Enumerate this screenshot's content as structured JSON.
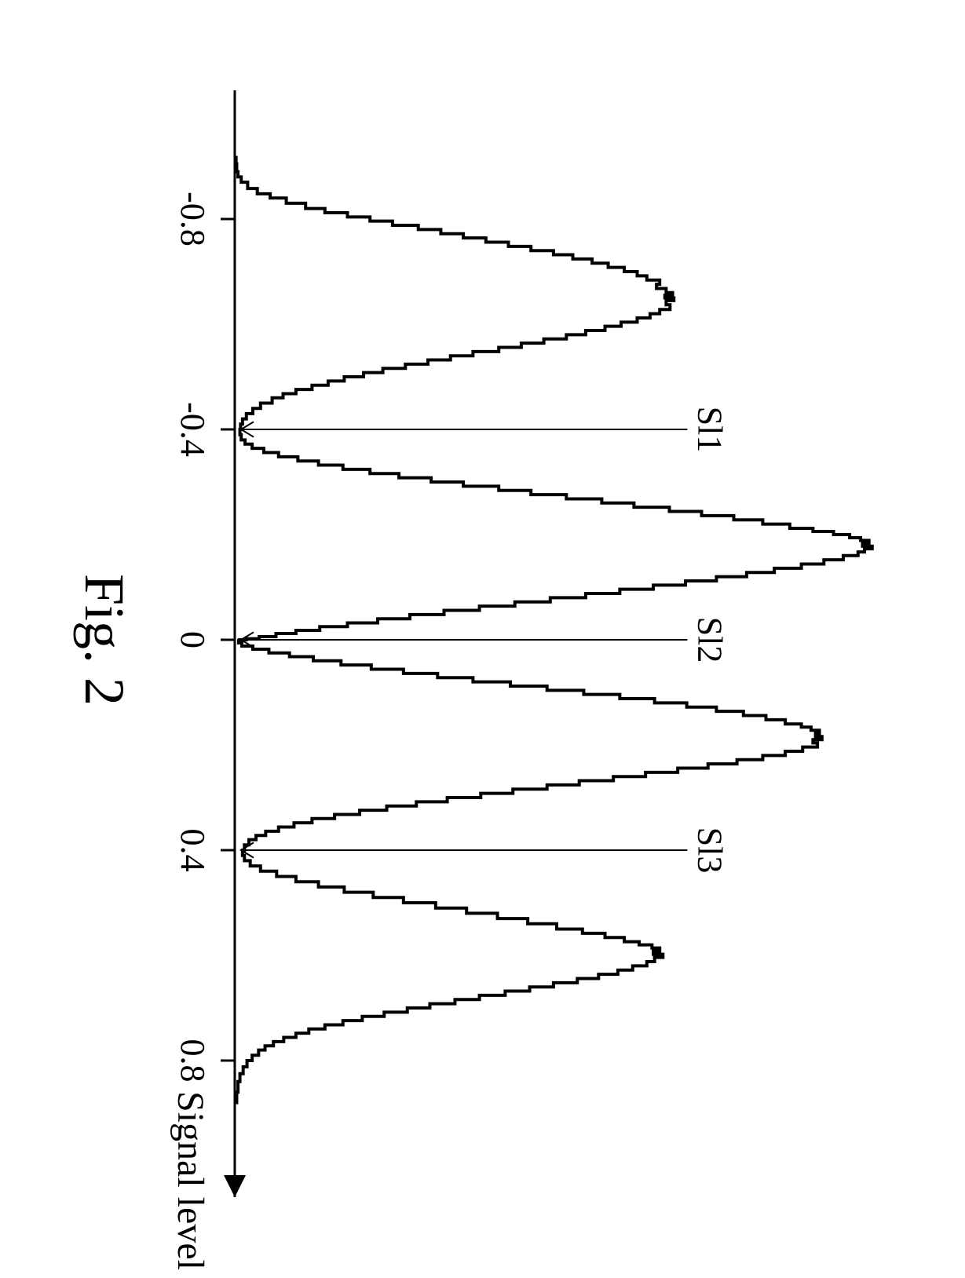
{
  "figure": {
    "caption": "Fig. 2",
    "caption_fontsize": 72,
    "caption_color": "#000000",
    "xaxis_label": "Signal level",
    "xaxis_label_fontsize": 48,
    "rotation_deg": 90,
    "plot": {
      "xlim": [
        -1.0,
        1.0
      ],
      "x_ticks": [
        -0.8,
        -0.4,
        0,
        0.4,
        0.8
      ],
      "x_tick_labels": [
        "-0.8",
        "-0.4",
        "0",
        "0.4",
        "0.8"
      ],
      "tick_fontsize": 44,
      "axis_color": "#000000",
      "axis_width": 3,
      "curve_color": "#000000",
      "curve_width": 4,
      "background": "#ffffff",
      "annotations": [
        {
          "label": "Sl1",
          "x": -0.4
        },
        {
          "label": "Sl2",
          "x": 0.0
        },
        {
          "label": "Sl3",
          "x": 0.4
        }
      ],
      "annotation_fontsize": 44,
      "data_points": [
        [
          -0.92,
          0.002
        ],
        [
          -0.905,
          0.003
        ],
        [
          -0.89,
          0.005
        ],
        [
          -0.88,
          0.01
        ],
        [
          -0.87,
          0.02
        ],
        [
          -0.858,
          0.035
        ],
        [
          -0.848,
          0.055
        ],
        [
          -0.84,
          0.08
        ],
        [
          -0.83,
          0.11
        ],
        [
          -0.82,
          0.14
        ],
        [
          -0.812,
          0.175
        ],
        [
          -0.804,
          0.21
        ],
        [
          -0.796,
          0.245
        ],
        [
          -0.788,
          0.285
        ],
        [
          -0.78,
          0.32
        ],
        [
          -0.772,
          0.355
        ],
        [
          -0.764,
          0.39
        ],
        [
          -0.756,
          0.425
        ],
        [
          -0.748,
          0.46
        ],
        [
          -0.74,
          0.495
        ],
        [
          -0.732,
          0.525
        ],
        [
          -0.724,
          0.555
        ],
        [
          -0.716,
          0.58
        ],
        [
          -0.708,
          0.605
        ],
        [
          -0.7,
          0.625
        ],
        [
          -0.692,
          0.64
        ],
        [
          -0.684,
          0.66
        ],
        [
          -0.676,
          0.655
        ],
        [
          -0.668,
          0.67
        ],
        [
          -0.66,
          0.68
        ],
        [
          -0.655,
          0.668
        ],
        [
          -0.65,
          0.682
        ],
        [
          -0.645,
          0.67
        ],
        [
          -0.637,
          0.676
        ],
        [
          -0.628,
          0.66
        ],
        [
          -0.62,
          0.645
        ],
        [
          -0.612,
          0.625
        ],
        [
          -0.604,
          0.6
        ],
        [
          -0.596,
          0.575
        ],
        [
          -0.588,
          0.545
        ],
        [
          -0.58,
          0.515
        ],
        [
          -0.572,
          0.48
        ],
        [
          -0.564,
          0.445
        ],
        [
          -0.556,
          0.41
        ],
        [
          -0.548,
          0.37
        ],
        [
          -0.54,
          0.335
        ],
        [
          -0.532,
          0.3
        ],
        [
          -0.524,
          0.265
        ],
        [
          -0.516,
          0.23
        ],
        [
          -0.508,
          0.2
        ],
        [
          -0.5,
          0.17
        ],
        [
          -0.492,
          0.145
        ],
        [
          -0.484,
          0.12
        ],
        [
          -0.476,
          0.095
        ],
        [
          -0.468,
          0.075
        ],
        [
          -0.46,
          0.058
        ],
        [
          -0.45,
          0.04
        ],
        [
          -0.44,
          0.028
        ],
        [
          -0.43,
          0.018
        ],
        [
          -0.42,
          0.012
        ],
        [
          -0.41,
          0.009
        ],
        [
          -0.4,
          0.008
        ],
        [
          -0.39,
          0.01
        ],
        [
          -0.38,
          0.016
        ],
        [
          -0.372,
          0.027
        ],
        [
          -0.364,
          0.045
        ],
        [
          -0.356,
          0.068
        ],
        [
          -0.348,
          0.098
        ],
        [
          -0.34,
          0.13
        ],
        [
          -0.332,
          0.168
        ],
        [
          -0.324,
          0.21
        ],
        [
          -0.316,
          0.255
        ],
        [
          -0.308,
          0.305
        ],
        [
          -0.3,
          0.355
        ],
        [
          -0.292,
          0.41
        ],
        [
          -0.284,
          0.46
        ],
        [
          -0.276,
          0.515
        ],
        [
          -0.268,
          0.57
        ],
        [
          -0.26,
          0.62
        ],
        [
          -0.252,
          0.675
        ],
        [
          -0.244,
          0.725
        ],
        [
          -0.236,
          0.775
        ],
        [
          -0.228,
          0.82
        ],
        [
          -0.22,
          0.862
        ],
        [
          -0.212,
          0.898
        ],
        [
          -0.206,
          0.93
        ],
        [
          -0.2,
          0.955
        ],
        [
          -0.194,
          0.972
        ],
        [
          -0.189,
          0.985
        ],
        [
          -0.184,
          0.975
        ],
        [
          -0.178,
          0.99
        ],
        [
          -0.173,
          0.978
        ],
        [
          -0.167,
          0.968
        ],
        [
          -0.16,
          0.945
        ],
        [
          -0.152,
          0.915
        ],
        [
          -0.144,
          0.88
        ],
        [
          -0.136,
          0.838
        ],
        [
          -0.128,
          0.795
        ],
        [
          -0.12,
          0.748
        ],
        [
          -0.112,
          0.7
        ],
        [
          -0.104,
          0.65
        ],
        [
          -0.096,
          0.598
        ],
        [
          -0.088,
          0.545
        ],
        [
          -0.08,
          0.49
        ],
        [
          -0.072,
          0.435
        ],
        [
          -0.064,
          0.38
        ],
        [
          -0.056,
          0.325
        ],
        [
          -0.048,
          0.272
        ],
        [
          -0.04,
          0.222
        ],
        [
          -0.032,
          0.175
        ],
        [
          -0.025,
          0.132
        ],
        [
          -0.018,
          0.095
        ],
        [
          -0.012,
          0.064
        ],
        [
          -0.006,
          0.038
        ],
        [
          -0.002,
          0.018
        ],
        [
          0.0,
          0.007
        ],
        [
          0.002,
          0.006
        ],
        [
          0.006,
          0.011
        ],
        [
          0.012,
          0.028
        ],
        [
          0.018,
          0.053
        ],
        [
          0.025,
          0.085
        ],
        [
          0.032,
          0.122
        ],
        [
          0.04,
          0.165
        ],
        [
          0.048,
          0.212
        ],
        [
          0.056,
          0.262
        ],
        [
          0.064,
          0.315
        ],
        [
          0.072,
          0.37
        ],
        [
          0.08,
          0.428
        ],
        [
          0.088,
          0.485
        ],
        [
          0.096,
          0.542
        ],
        [
          0.104,
          0.598
        ],
        [
          0.112,
          0.652
        ],
        [
          0.12,
          0.702
        ],
        [
          0.128,
          0.748
        ],
        [
          0.136,
          0.79
        ],
        [
          0.144,
          0.825
        ],
        [
          0.152,
          0.855
        ],
        [
          0.16,
          0.88
        ],
        [
          0.166,
          0.895
        ],
        [
          0.172,
          0.908
        ],
        [
          0.178,
          0.902
        ],
        [
          0.184,
          0.912
        ],
        [
          0.19,
          0.898
        ],
        [
          0.196,
          0.905
        ],
        [
          0.204,
          0.882
        ],
        [
          0.212,
          0.855
        ],
        [
          0.22,
          0.82
        ],
        [
          0.228,
          0.78
        ],
        [
          0.236,
          0.735
        ],
        [
          0.244,
          0.688
        ],
        [
          0.252,
          0.638
        ],
        [
          0.26,
          0.588
        ],
        [
          0.268,
          0.535
        ],
        [
          0.276,
          0.485
        ],
        [
          0.284,
          0.432
        ],
        [
          0.292,
          0.382
        ],
        [
          0.3,
          0.33
        ],
        [
          0.308,
          0.282
        ],
        [
          0.316,
          0.236
        ],
        [
          0.324,
          0.194
        ],
        [
          0.332,
          0.155
        ],
        [
          0.34,
          0.12
        ],
        [
          0.348,
          0.092
        ],
        [
          0.356,
          0.068
        ],
        [
          0.364,
          0.048
        ],
        [
          0.372,
          0.033
        ],
        [
          0.38,
          0.022
        ],
        [
          0.39,
          0.015
        ],
        [
          0.4,
          0.012
        ],
        [
          0.41,
          0.015
        ],
        [
          0.42,
          0.024
        ],
        [
          0.43,
          0.04
        ],
        [
          0.44,
          0.065
        ],
        [
          0.45,
          0.095
        ],
        [
          0.46,
          0.13
        ],
        [
          0.47,
          0.17
        ],
        [
          0.48,
          0.215
        ],
        [
          0.49,
          0.262
        ],
        [
          0.5,
          0.312
        ],
        [
          0.51,
          0.36
        ],
        [
          0.52,
          0.408
        ],
        [
          0.53,
          0.455
        ],
        [
          0.54,
          0.5
        ],
        [
          0.55,
          0.54
        ],
        [
          0.558,
          0.575
        ],
        [
          0.566,
          0.605
        ],
        [
          0.574,
          0.628
        ],
        [
          0.58,
          0.648
        ],
        [
          0.586,
          0.66
        ],
        [
          0.592,
          0.65
        ],
        [
          0.598,
          0.665
        ],
        [
          0.604,
          0.652
        ],
        [
          0.612,
          0.64
        ],
        [
          0.62,
          0.618
        ],
        [
          0.628,
          0.595
        ],
        [
          0.636,
          0.565
        ],
        [
          0.644,
          0.532
        ],
        [
          0.652,
          0.495
        ],
        [
          0.66,
          0.458
        ],
        [
          0.668,
          0.42
        ],
        [
          0.676,
          0.38
        ],
        [
          0.684,
          0.342
        ],
        [
          0.692,
          0.303
        ],
        [
          0.7,
          0.268
        ],
        [
          0.708,
          0.232
        ],
        [
          0.716,
          0.198
        ],
        [
          0.724,
          0.168
        ],
        [
          0.732,
          0.14
        ],
        [
          0.74,
          0.115
        ],
        [
          0.748,
          0.095
        ],
        [
          0.756,
          0.076
        ],
        [
          0.764,
          0.06
        ],
        [
          0.772,
          0.047
        ],
        [
          0.78,
          0.037
        ],
        [
          0.79,
          0.027
        ],
        [
          0.8,
          0.019
        ],
        [
          0.812,
          0.013
        ],
        [
          0.825,
          0.008
        ],
        [
          0.84,
          0.005
        ],
        [
          0.86,
          0.003
        ],
        [
          0.88,
          0.002
        ]
      ]
    }
  }
}
